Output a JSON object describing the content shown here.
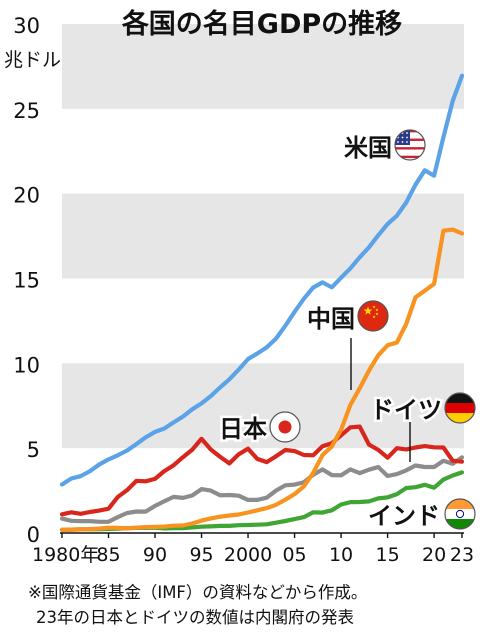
{
  "chart_data": {
    "type": "line",
    "title": "各国の名目GDPの推移",
    "unit_label": "兆ドル",
    "ylim": [
      0,
      30
    ],
    "yticks": [
      0,
      5,
      10,
      15,
      20,
      25,
      30
    ],
    "xlim": [
      1980,
      2023
    ],
    "xtick_labels": [
      {
        "x": 1980,
        "label": "1980年"
      },
      {
        "x": 1985,
        "label": "85"
      },
      {
        "x": 1990,
        "label": "90"
      },
      {
        "x": 1995,
        "label": "95"
      },
      {
        "x": 2000,
        "label": "2000"
      },
      {
        "x": 2005,
        "label": "05"
      },
      {
        "x": 2010,
        "label": "10"
      },
      {
        "x": 2015,
        "label": "15"
      },
      {
        "x": 2020,
        "label": "20"
      },
      {
        "x": 2023,
        "label": "23"
      }
    ],
    "grid": "horizontal bands",
    "x": [
      1980,
      1981,
      1982,
      1983,
      1984,
      1985,
      1986,
      1987,
      1988,
      1989,
      1990,
      1991,
      1992,
      1993,
      1994,
      1995,
      1996,
      1997,
      1998,
      1999,
      2000,
      2001,
      2002,
      2003,
      2004,
      2005,
      2006,
      2007,
      2008,
      2009,
      2010,
      2011,
      2012,
      2013,
      2014,
      2015,
      2016,
      2017,
      2018,
      2019,
      2020,
      2021,
      2022,
      2023
    ],
    "series": [
      {
        "name": "米国",
        "color": "#5ba3e6",
        "flag": "us-flag",
        "values": [
          2.86,
          3.21,
          3.35,
          3.64,
          4.04,
          4.34,
          4.58,
          4.86,
          5.24,
          5.64,
          5.96,
          6.16,
          6.52,
          6.86,
          7.29,
          7.64,
          8.07,
          8.58,
          9.06,
          9.63,
          10.25,
          10.58,
          10.94,
          11.46,
          12.21,
          13.04,
          13.81,
          14.47,
          14.77,
          14.48,
          15.05,
          15.6,
          16.25,
          16.84,
          17.55,
          18.21,
          18.7,
          19.48,
          20.53,
          21.38,
          21.06,
          23.32,
          25.46,
          26.95
        ]
      },
      {
        "name": "中国",
        "color": "#f7931e",
        "flag": "cn-flag",
        "values": [
          0.19,
          0.2,
          0.21,
          0.23,
          0.26,
          0.31,
          0.3,
          0.27,
          0.31,
          0.35,
          0.36,
          0.38,
          0.43,
          0.44,
          0.56,
          0.73,
          0.86,
          0.96,
          1.03,
          1.09,
          1.21,
          1.34,
          1.47,
          1.66,
          1.96,
          2.29,
          2.75,
          3.55,
          4.59,
          5.1,
          6.09,
          7.55,
          8.53,
          9.57,
          10.48,
          11.06,
          11.23,
          12.31,
          13.89,
          14.28,
          14.69,
          17.82,
          17.88,
          17.66
        ]
      },
      {
        "name": "日本",
        "color": "#d8261c",
        "flag": "jp-flag",
        "values": [
          1.1,
          1.22,
          1.13,
          1.24,
          1.32,
          1.43,
          2.12,
          2.53,
          3.07,
          3.05,
          3.19,
          3.65,
          3.99,
          4.47,
          4.91,
          5.55,
          4.92,
          4.49,
          4.1,
          4.64,
          4.97,
          4.37,
          4.18,
          4.52,
          4.89,
          4.83,
          4.6,
          4.58,
          5.11,
          5.29,
          5.76,
          6.23,
          6.27,
          5.21,
          4.9,
          4.44,
          5.0,
          4.93,
          5.04,
          5.12,
          5.05,
          5.04,
          4.26,
          4.21
        ]
      },
      {
        "name": "ドイツ",
        "color": "#8c8c8c",
        "flag": "de-flag",
        "values": [
          0.85,
          0.72,
          0.7,
          0.7,
          0.66,
          0.66,
          0.94,
          1.18,
          1.27,
          1.26,
          1.6,
          1.87,
          2.13,
          2.07,
          2.21,
          2.59,
          2.5,
          2.22,
          2.24,
          2.2,
          1.95,
          1.95,
          2.08,
          2.5,
          2.81,
          2.85,
          2.99,
          3.43,
          3.75,
          3.41,
          3.4,
          3.75,
          3.53,
          3.73,
          3.89,
          3.36,
          3.47,
          3.69,
          3.98,
          3.89,
          3.89,
          4.26,
          4.08,
          4.46
        ]
      },
      {
        "name": "インド",
        "color": "#3fa535",
        "flag": "in-flag",
        "values": [
          0.19,
          0.2,
          0.21,
          0.22,
          0.22,
          0.24,
          0.26,
          0.28,
          0.3,
          0.3,
          0.32,
          0.27,
          0.29,
          0.28,
          0.33,
          0.37,
          0.39,
          0.42,
          0.42,
          0.46,
          0.47,
          0.49,
          0.51,
          0.61,
          0.71,
          0.82,
          0.94,
          1.22,
          1.2,
          1.34,
          1.68,
          1.82,
          1.83,
          1.86,
          2.04,
          2.1,
          2.29,
          2.65,
          2.7,
          2.84,
          2.67,
          3.15,
          3.39,
          3.57
        ]
      }
    ]
  },
  "notes": {
    "line1": "※国際通貨基金（IMF）の資料などから作成。",
    "line2": "23年の日本とドイツの数値は内閣府の発表"
  }
}
